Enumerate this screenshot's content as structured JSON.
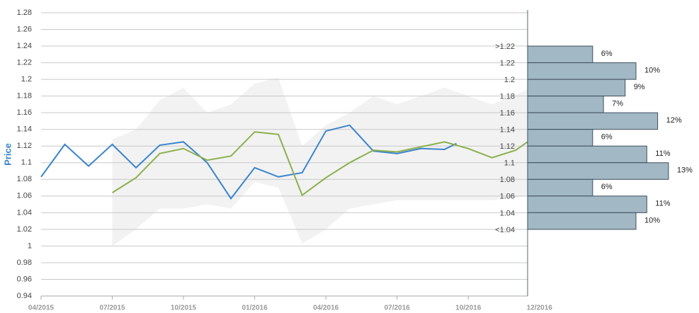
{
  "chart_data": {
    "type": "line",
    "y_label": "Price",
    "ylim": [
      0.94,
      1.28
    ],
    "yticks": [
      0.94,
      0.96,
      0.98,
      1,
      1.02,
      1.04,
      1.06,
      1.08,
      1.1,
      1.12,
      1.14,
      1.16,
      1.18,
      1.2,
      1.22,
      1.24,
      1.26,
      1.28
    ],
    "xlim": [
      0,
      20.5
    ],
    "xticks": [
      {
        "value": 0,
        "label": "04/2015"
      },
      {
        "value": 3,
        "label": "07/2015"
      },
      {
        "value": 6,
        "label": "10/2015"
      },
      {
        "value": 9,
        "label": "01/2016"
      },
      {
        "value": 12,
        "label": "04/2016"
      },
      {
        "value": 15,
        "label": "07/2016"
      },
      {
        "value": 18,
        "label": "10/2016"
      },
      {
        "value": 21,
        "label": "12/2016"
      }
    ],
    "grid": true,
    "band": {
      "color": "#f2f2f2",
      "x": [
        3,
        4,
        5,
        6,
        7,
        8,
        9,
        10,
        11,
        12,
        13,
        14,
        15,
        16,
        17,
        18,
        19,
        20.5
      ],
      "upper": [
        1.128,
        1.14,
        1.175,
        1.19,
        1.16,
        1.17,
        1.195,
        1.202,
        1.12,
        1.145,
        1.16,
        1.18,
        1.17,
        1.18,
        1.19,
        1.18,
        1.17,
        1.188
      ],
      "lower": [
        1.0,
        1.02,
        1.045,
        1.045,
        1.05,
        1.045,
        1.077,
        1.07,
        1.003,
        1.02,
        1.045,
        1.05,
        1.055,
        1.055,
        1.055,
        1.055,
        1.055,
        1.06
      ]
    },
    "series": [
      {
        "color": "#3a84cc",
        "x": [
          0,
          1,
          2,
          3,
          4,
          5,
          6,
          7,
          8,
          9,
          10,
          11,
          12,
          13,
          14,
          15,
          16,
          17,
          17.5
        ],
        "values": [
          1.083,
          1.122,
          1.096,
          1.122,
          1.094,
          1.121,
          1.125,
          1.1,
          1.057,
          1.094,
          1.083,
          1.088,
          1.138,
          1.145,
          1.114,
          1.111,
          1.117,
          1.116,
          1.123
        ]
      },
      {
        "color": "#8db04c",
        "x": [
          3,
          4,
          5,
          6,
          7,
          8,
          9,
          10,
          11,
          12,
          13,
          14,
          15,
          16,
          17,
          18,
          19,
          20,
          20.5
        ],
        "values": [
          1.064,
          1.082,
          1.111,
          1.117,
          1.103,
          1.108,
          1.137,
          1.134,
          1.061,
          1.082,
          1.1,
          1.115,
          1.113,
          1.119,
          1.125,
          1.117,
          1.106,
          1.115,
          1.125
        ]
      }
    ],
    "histogram": {
      "color": "#a2b8c4",
      "categories": [
        ">1.22",
        "1.22",
        "1.2",
        "1.18",
        "1.16",
        "1.14",
        "1.12",
        "1.1",
        "1.08",
        "1.06",
        "1.04",
        "<1.04"
      ],
      "rows_top": [
        1.24,
        1.22,
        1.2,
        1.18,
        1.16,
        1.14,
        1.12,
        1.1,
        1.08,
        1.06,
        1.04,
        1.02
      ],
      "values": [
        6,
        10,
        9,
        7,
        12,
        6,
        11,
        13,
        6,
        11,
        10,
        null
      ],
      "value_labels": [
        "6%",
        "10%",
        "9%",
        "7%",
        "12%",
        "6%",
        "11%",
        "13%",
        "6%",
        "11%",
        "10%",
        null
      ]
    }
  }
}
